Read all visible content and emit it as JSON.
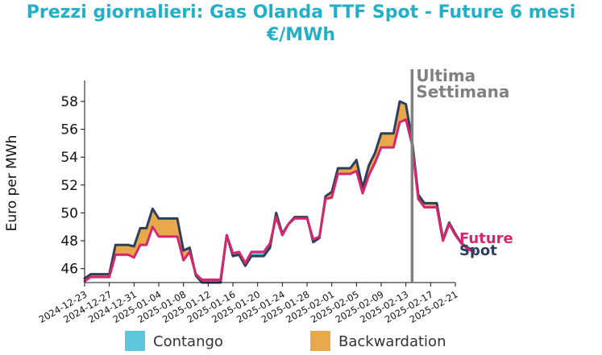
{
  "chart_data": {
    "type": "line",
    "title_line1": "Prezzi giornalieri: Gas Olanda TTF Spot - Future 6 mesi",
    "title_line2": "€/MWh",
    "ylabel": "Euro per MWh",
    "xlabel": "",
    "ylim": [
      45.0,
      59.5
    ],
    "y_ticks": [
      46,
      48,
      50,
      52,
      54,
      56,
      58
    ],
    "x_tick_labels": [
      "2024-12-23",
      "2024-12-27",
      "2024-12-31",
      "2025-01-04",
      "2025-01-08",
      "2025-01-12",
      "2025-01-16",
      "2025-01-20",
      "2025-01-24",
      "2025-01-28",
      "2025-02-01",
      "2025-02-05",
      "2025-02-09",
      "2025-02-13",
      "2025-02-17",
      "2025-02-21"
    ],
    "x_start": "2024-12-23",
    "x_end": "2025-02-21",
    "annotation": {
      "text_line1": "Ultima",
      "text_line2": "Settimana",
      "date": "2025-02-14",
      "color": "#808080"
    },
    "fill_legend": [
      {
        "label": "Contango",
        "color": "#5bc8dc"
      },
      {
        "label": "Backwardation",
        "color": "#e9a84a"
      }
    ],
    "series": [
      {
        "name": "Spot",
        "color": "#2e3f5e",
        "points": [
          [
            "2024-12-23",
            45.3
          ],
          [
            "2024-12-24",
            45.6
          ],
          [
            "2024-12-27",
            45.6
          ],
          [
            "2024-12-28",
            47.7
          ],
          [
            "2024-12-30",
            47.7
          ],
          [
            "2024-12-31",
            47.6
          ],
          [
            "2025-01-01",
            48.9
          ],
          [
            "2025-01-02",
            48.9
          ],
          [
            "2025-01-03",
            50.3
          ],
          [
            "2025-01-04",
            49.6
          ],
          [
            "2025-01-07",
            49.6
          ],
          [
            "2025-01-08",
            47.3
          ],
          [
            "2025-01-09",
            47.5
          ],
          [
            "2025-01-10",
            45.5
          ],
          [
            "2025-01-11",
            45.0
          ],
          [
            "2025-01-14",
            45.0
          ],
          [
            "2025-01-15",
            48.4
          ],
          [
            "2025-01-16",
            46.9
          ],
          [
            "2025-01-17",
            47.0
          ],
          [
            "2025-01-18",
            46.2
          ],
          [
            "2025-01-19",
            46.9
          ],
          [
            "2025-01-21",
            46.9
          ],
          [
            "2025-01-22",
            47.5
          ],
          [
            "2025-01-23",
            50.0
          ],
          [
            "2025-01-24",
            48.5
          ],
          [
            "2025-01-25",
            49.2
          ],
          [
            "2025-01-26",
            49.7
          ],
          [
            "2025-01-28",
            49.7
          ],
          [
            "2025-01-29",
            47.9
          ],
          [
            "2025-01-30",
            48.2
          ],
          [
            "2025-01-31",
            51.2
          ],
          [
            "2025-02-01",
            51.5
          ],
          [
            "2025-02-02",
            53.2
          ],
          [
            "2025-02-04",
            53.2
          ],
          [
            "2025-02-05",
            53.8
          ],
          [
            "2025-02-06",
            51.8
          ],
          [
            "2025-02-07",
            53.4
          ],
          [
            "2025-02-08",
            54.3
          ],
          [
            "2025-02-09",
            55.7
          ],
          [
            "2025-02-11",
            55.7
          ],
          [
            "2025-02-12",
            58.0
          ],
          [
            "2025-02-13",
            57.8
          ],
          [
            "2025-02-14",
            55.2
          ],
          [
            "2025-02-15",
            51.3
          ],
          [
            "2025-02-16",
            50.7
          ],
          [
            "2025-02-18",
            50.7
          ],
          [
            "2025-02-19",
            48.1
          ],
          [
            "2025-02-20",
            49.3
          ],
          [
            "2025-02-21",
            48.5
          ],
          [
            "2025-02-22",
            47.8
          ],
          [
            "2025-02-23",
            47.5
          ],
          [
            "2025-02-24",
            47.3
          ]
        ]
      },
      {
        "name": "Future",
        "color": "#d6276e",
        "points": [
          [
            "2024-12-23",
            45.1
          ],
          [
            "2024-12-24",
            45.4
          ],
          [
            "2024-12-27",
            45.4
          ],
          [
            "2024-12-28",
            47.0
          ],
          [
            "2024-12-30",
            47.0
          ],
          [
            "2024-12-31",
            46.8
          ],
          [
            "2025-01-01",
            47.7
          ],
          [
            "2025-01-02",
            47.7
          ],
          [
            "2025-01-03",
            49.0
          ],
          [
            "2025-01-04",
            48.3
          ],
          [
            "2025-01-07",
            48.3
          ],
          [
            "2025-01-08",
            46.6
          ],
          [
            "2025-01-09",
            47.2
          ],
          [
            "2025-01-10",
            45.6
          ],
          [
            "2025-01-11",
            45.2
          ],
          [
            "2025-01-14",
            45.2
          ],
          [
            "2025-01-15",
            48.4
          ],
          [
            "2025-01-16",
            47.1
          ],
          [
            "2025-01-17",
            47.2
          ],
          [
            "2025-01-18",
            46.4
          ],
          [
            "2025-01-19",
            47.2
          ],
          [
            "2025-01-21",
            47.2
          ],
          [
            "2025-01-22",
            47.8
          ],
          [
            "2025-01-23",
            49.7
          ],
          [
            "2025-01-24",
            48.4
          ],
          [
            "2025-01-25",
            49.2
          ],
          [
            "2025-01-26",
            49.6
          ],
          [
            "2025-01-28",
            49.6
          ],
          [
            "2025-01-29",
            48.1
          ],
          [
            "2025-01-30",
            48.3
          ],
          [
            "2025-01-31",
            51.0
          ],
          [
            "2025-02-01",
            51.1
          ],
          [
            "2025-02-02",
            52.8
          ],
          [
            "2025-02-04",
            52.8
          ],
          [
            "2025-02-05",
            53.0
          ],
          [
            "2025-02-06",
            51.4
          ],
          [
            "2025-02-07",
            52.7
          ],
          [
            "2025-02-08",
            53.6
          ],
          [
            "2025-02-09",
            54.7
          ],
          [
            "2025-02-11",
            54.7
          ],
          [
            "2025-02-12",
            56.5
          ],
          [
            "2025-02-13",
            56.7
          ],
          [
            "2025-02-14",
            54.9
          ],
          [
            "2025-02-15",
            51.0
          ],
          [
            "2025-02-16",
            50.4
          ],
          [
            "2025-02-18",
            50.4
          ],
          [
            "2025-02-19",
            48.0
          ],
          [
            "2025-02-20",
            49.2
          ],
          [
            "2025-02-21",
            48.4
          ],
          [
            "2025-02-22",
            47.8
          ],
          [
            "2025-02-23",
            47.4
          ],
          [
            "2025-02-24",
            47.2
          ]
        ]
      }
    ]
  }
}
